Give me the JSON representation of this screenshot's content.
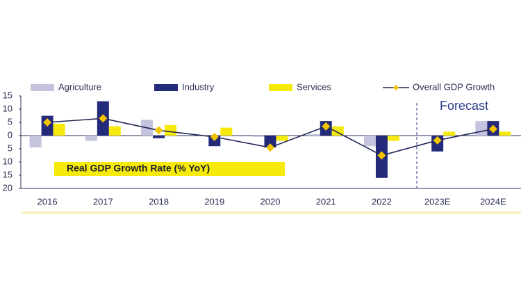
{
  "chart_data": {
    "type": "bar_line",
    "categories": [
      "2016",
      "2017",
      "2018",
      "2019",
      "2020",
      "2021",
      "2022",
      "2023E",
      "2024E"
    ],
    "series": [
      {
        "name": "Agriculture",
        "color": "#c4c4de",
        "kind": "bar",
        "values": [
          -4.5,
          -2,
          6,
          0,
          -0.5,
          0.5,
          -4,
          0,
          5.5
        ]
      },
      {
        "name": "Industry",
        "color": "#232a7a",
        "kind": "bar",
        "values": [
          7.5,
          13,
          -1,
          -4,
          -4.5,
          5.5,
          -16,
          -6,
          5.5
        ]
      },
      {
        "name": "Services",
        "color": "#f6ea0c",
        "kind": "bar",
        "values": [
          4.5,
          3.5,
          4,
          3,
          -2,
          3.5,
          -2,
          1.5,
          1.5
        ]
      },
      {
        "name": "Overall GDP Growth",
        "color": "#1f2557",
        "marker_color": "#f5c400",
        "kind": "line",
        "values": [
          5,
          6.5,
          2,
          -0.5,
          -4.5,
          3.5,
          -7.5,
          -1.8,
          2.5
        ]
      }
    ],
    "ylim": [
      -20,
      15
    ],
    "yticks": [
      15,
      10,
      5,
      0,
      {
        "value": -5,
        "label": "5"
      },
      {
        "value": -10,
        "label": "10"
      },
      {
        "value": -15,
        "label": "15"
      },
      {
        "value": -20,
        "label": "20"
      }
    ],
    "annotations": [
      "Forecast",
      "Real GDP Growth Rate (% YoY)"
    ]
  }
}
